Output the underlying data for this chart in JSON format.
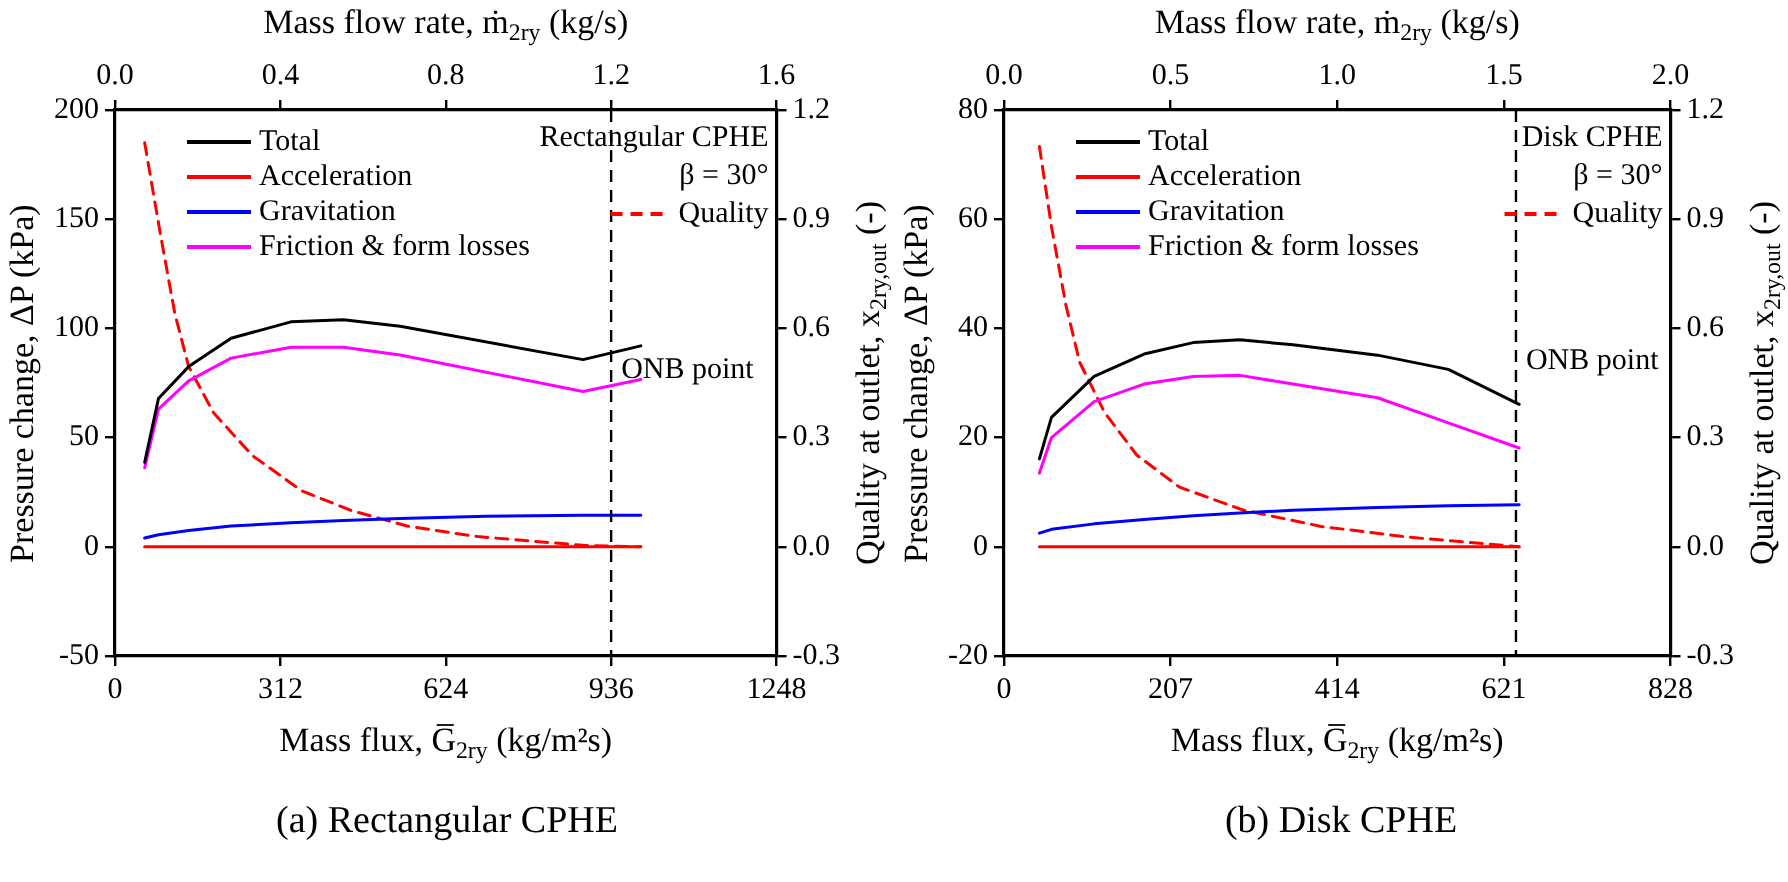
{
  "chart_data": [
    {
      "type": "line",
      "title": "(a) Rectangular CPHE",
      "xlabel": "Mass flux, G̅$_{2ry}$ (kg/m²s)",
      "ylabel": "Pressure change, ΔP (kPa)",
      "y2label": "Quality at outlet, x$_{2ry,out}$ (-)",
      "x2label": "Mass flow rate, ṁ$_{2ry}$ (kg/s)",
      "annotations": [
        "Rectangular CPHE",
        "β = 30°",
        {
          "text": "ONB point",
          "x": 936,
          "y": 81
        }
      ],
      "xlim": [
        0,
        1248
      ],
      "xticks": [
        0,
        312,
        624,
        936,
        1248
      ],
      "ylim": [
        -50,
        200
      ],
      "yticks": [
        -50,
        0,
        50,
        100,
        150,
        200
      ],
      "y2lim": [
        -0.3,
        1.2
      ],
      "y2ticks": [
        {
          "value": -0.3,
          "label": "-0.3"
        },
        {
          "value": 0,
          "label": "0.0"
        },
        {
          "value": 0.3,
          "label": "0.3"
        },
        {
          "value": 0.6,
          "label": "0.6"
        },
        {
          "value": 0.9,
          "label": "0.9"
        },
        {
          "value": 1.2,
          "label": "1.2"
        }
      ],
      "x2lim": [
        0,
        1.6
      ],
      "x2ticks": [
        {
          "value": 0,
          "label": "0.0"
        },
        0.4,
        0.8,
        1.2,
        1.6
      ],
      "grid": false,
      "legend": "top left",
      "marker": "none",
      "line_style": "solid",
      "ref_lines": [
        {
          "axis": "x",
          "value": 936,
          "color": "#000000",
          "line_style": "dashed"
        }
      ],
      "series": [
        {
          "name": "Total",
          "color": "#000000",
          "x": [
            56,
            82,
            139,
            219,
            332,
            431,
            538,
            883,
            992
          ],
          "values": [
            38.7,
            67.9,
            82.5,
            95.5,
            103,
            104,
            101,
            85.7,
            92
          ]
        },
        {
          "name": "Acceleration",
          "color": "#ff0000",
          "x": [
            56,
            82,
            139,
            219,
            332,
            431,
            538,
            883,
            992
          ],
          "values": [
            0,
            0,
            0,
            0,
            0,
            0,
            0,
            0,
            0
          ]
        },
        {
          "name": "Gravitation",
          "color": "#0000ff",
          "x": [
            56,
            82,
            139,
            219,
            332,
            431,
            538,
            700,
            883,
            992
          ],
          "values": [
            4,
            5.5,
            7.5,
            9.5,
            11,
            12,
            13,
            14,
            14.5,
            14.5
          ]
        },
        {
          "name": "Friction & form losses",
          "color": "#ff00ff",
          "x": [
            56,
            82,
            139,
            219,
            332,
            431,
            538,
            883,
            992
          ],
          "values": [
            36.2,
            63,
            76,
            86.4,
            91.4,
            91.4,
            87.8,
            71.1,
            76.6
          ]
        },
        {
          "name": "Quality",
          "color": "#ff0000",
          "axis": "y2",
          "line_style": "dashed",
          "x": [
            56,
            86,
            113,
            139,
            186,
            259,
            352,
            445,
            551,
            684,
            883,
            992
          ],
          "values": [
            1.11,
            0.856,
            0.64,
            0.495,
            0.368,
            0.251,
            0.154,
            0.1,
            0.057,
            0.028,
            0.004,
            0
          ]
        }
      ]
    },
    {
      "type": "line",
      "title": "(b) Disk CPHE",
      "xlabel": "Mass flux, G̅$_{2ry}$ (kg/m²s)",
      "ylabel": "Pressure change, ΔP (kPa)",
      "y2label": "Quality at outlet, x$_{2ry,out}$ (-)",
      "x2label": "Mass flow rate, ṁ$_{2ry}$ (kg/s)",
      "annotations": [
        "Disk CPHE",
        "β = 30°",
        {
          "text": "ONB point",
          "x": 636,
          "y": 34
        }
      ],
      "xlim": [
        0,
        828
      ],
      "xticks": [
        0,
        207,
        414,
        621,
        828
      ],
      "ylim": [
        -20,
        80
      ],
      "yticks": [
        -20,
        0,
        20,
        40,
        60,
        80
      ],
      "y2lim": [
        -0.3,
        1.2
      ],
      "y2ticks": [
        {
          "value": -0.3,
          "label": "-0.3"
        },
        {
          "value": 0,
          "label": "0.0"
        },
        {
          "value": 0.3,
          "label": "0.3"
        },
        {
          "value": 0.6,
          "label": "0.6"
        },
        {
          "value": 0.9,
          "label": "0.9"
        },
        {
          "value": 1.2,
          "label": "1.2"
        }
      ],
      "x2lim": [
        0,
        2
      ],
      "x2ticks": [
        {
          "value": 0,
          "label": "0.0"
        },
        0.5,
        {
          "value": 1,
          "label": "1.0"
        },
        1.5,
        {
          "value": 2,
          "label": "2.0"
        }
      ],
      "grid": false,
      "legend": "top left",
      "marker": "none",
      "line_style": "solid",
      "ref_lines": [
        {
          "axis": "x",
          "value": 636,
          "color": "#000000",
          "line_style": "dashed"
        }
      ],
      "series": [
        {
          "name": "Total",
          "color": "#000000",
          "x": [
            44,
            59,
            112,
            174,
            235,
            293,
            359,
            464,
            552,
            640
          ],
          "values": [
            16.1,
            23.7,
            31.2,
            35.3,
            37.4,
            37.9,
            37,
            35.1,
            32.5,
            26.1
          ]
        },
        {
          "name": "Acceleration",
          "color": "#ff0000",
          "x": [
            44,
            59,
            112,
            174,
            235,
            293,
            359,
            464,
            552,
            640
          ],
          "values": [
            0,
            0,
            0,
            0,
            0,
            0,
            0,
            0,
            0,
            0
          ]
        },
        {
          "name": "Gravitation",
          "color": "#0000ff",
          "x": [
            44,
            59,
            112,
            174,
            235,
            293,
            359,
            464,
            552,
            640
          ],
          "values": [
            2.5,
            3.2,
            4.2,
            5,
            5.7,
            6.2,
            6.7,
            7.2,
            7.5,
            7.7
          ]
        },
        {
          "name": "Friction & form losses",
          "color": "#ff00ff",
          "x": [
            44,
            59,
            112,
            174,
            235,
            293,
            359,
            464,
            552,
            640
          ],
          "values": [
            13.5,
            20,
            26.6,
            29.8,
            31.2,
            31.4,
            29.8,
            27.3,
            22.7,
            18.1
          ]
        },
        {
          "name": "Quality",
          "color": "#ff0000",
          "axis": "y2",
          "line_style": "dashed",
          "x": [
            44,
            59,
            77,
            94,
            125,
            165,
            218,
            297,
            394,
            500,
            640
          ],
          "values": [
            1.1,
            0.879,
            0.663,
            0.507,
            0.369,
            0.252,
            0.164,
            0.101,
            0.056,
            0.027,
            0
          ]
        }
      ]
    }
  ]
}
